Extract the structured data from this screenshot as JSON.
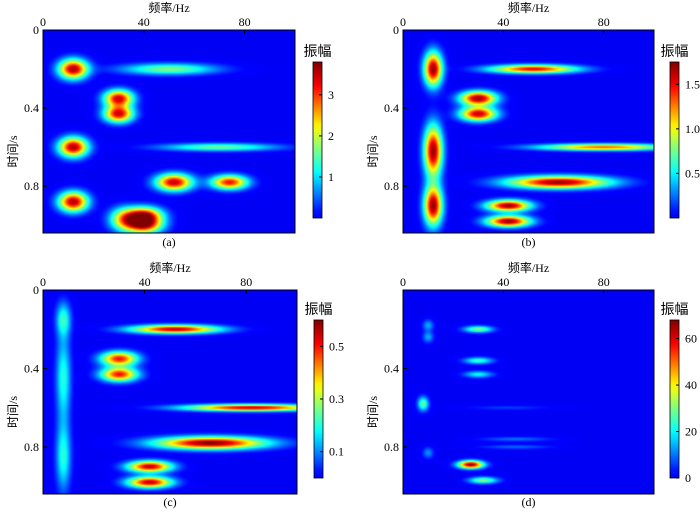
{
  "chart_data": [
    {
      "type": "heatmap",
      "panel_label": "(a)",
      "xlabel": "频率/Hz",
      "ylabel": "时间/s",
      "colorbar_label": "振幅",
      "xlim": [
        0,
        100
      ],
      "ylim": [
        0,
        1.04
      ],
      "y_inverted": true,
      "x_axis_position": "top",
      "xticks": [
        "0",
        "40",
        "80"
      ],
      "yticks": [
        "0",
        "0.4",
        "0.8"
      ],
      "colorbar_ticks": [
        "1",
        "2",
        "3"
      ],
      "colorbar_range": [
        0,
        3.8
      ],
      "colormap": "jet",
      "blobs": [
        {
          "f": 12,
          "t": 0.2,
          "amp": 3.6,
          "sf": 4,
          "st": 0.035
        },
        {
          "f": 12,
          "t": 0.6,
          "amp": 3.6,
          "sf": 4,
          "st": 0.035
        },
        {
          "f": 12,
          "t": 0.88,
          "amp": 3.6,
          "sf": 4,
          "st": 0.035
        },
        {
          "f": 30,
          "t": 0.35,
          "amp": 3.4,
          "sf": 4,
          "st": 0.03
        },
        {
          "f": 30,
          "t": 0.43,
          "amp": 3.4,
          "sf": 4,
          "st": 0.03
        },
        {
          "f": 50,
          "t": 0.2,
          "amp": 1.7,
          "sf": 13,
          "st": 0.02
        },
        {
          "f": 70,
          "t": 0.6,
          "amp": 1.6,
          "sf": 16,
          "st": 0.014
        },
        {
          "f": 52,
          "t": 0.78,
          "amp": 3.5,
          "sf": 5,
          "st": 0.03
        },
        {
          "f": 74,
          "t": 0.78,
          "amp": 3.2,
          "sf": 5,
          "st": 0.025
        },
        {
          "f": 40,
          "t": 0.95,
          "amp": 3.4,
          "sf": 5,
          "st": 0.03
        },
        {
          "f": 40,
          "t": 1.0,
          "amp": 3.2,
          "sf": 5,
          "st": 0.03
        },
        {
          "f": 32,
          "t": 0.97,
          "amp": 2.0,
          "sf": 4,
          "st": 0.04
        }
      ]
    },
    {
      "type": "heatmap",
      "panel_label": "(b)",
      "xlabel": "频率/Hz",
      "ylabel": "时间/s",
      "colorbar_label": "振幅",
      "xlim": [
        0,
        100
      ],
      "ylim": [
        0,
        1.04
      ],
      "y_inverted": true,
      "x_axis_position": "top",
      "xticks": [
        "0",
        "40",
        "80"
      ],
      "yticks": [
        "0",
        "0.4",
        "0.8"
      ],
      "colorbar_ticks": [
        "0.5",
        "1.0",
        "1.5"
      ],
      "colorbar_range": [
        0,
        1.75
      ],
      "colormap": "jet",
      "blobs": [
        {
          "f": 12,
          "t": 0.2,
          "amp": 1.7,
          "sf": 2.5,
          "st": 0.06
        },
        {
          "f": 12,
          "t": 0.62,
          "amp": 1.7,
          "sf": 2.5,
          "st": 0.09
        },
        {
          "f": 12,
          "t": 0.9,
          "amp": 1.7,
          "sf": 2.5,
          "st": 0.07
        },
        {
          "f": 30,
          "t": 0.35,
          "amp": 1.7,
          "sf": 5,
          "st": 0.025
        },
        {
          "f": 30,
          "t": 0.43,
          "amp": 1.6,
          "sf": 5,
          "st": 0.025
        },
        {
          "f": 52,
          "t": 0.2,
          "amp": 1.5,
          "sf": 12,
          "st": 0.015
        },
        {
          "f": 80,
          "t": 0.6,
          "amp": 1.3,
          "sf": 18,
          "st": 0.012
        },
        {
          "f": 62,
          "t": 0.78,
          "amp": 1.7,
          "sf": 14,
          "st": 0.022
        },
        {
          "f": 42,
          "t": 0.9,
          "amp": 1.7,
          "sf": 6,
          "st": 0.02
        },
        {
          "f": 42,
          "t": 0.98,
          "amp": 1.7,
          "sf": 6,
          "st": 0.02
        }
      ]
    },
    {
      "type": "heatmap",
      "panel_label": "(c)",
      "xlabel": "频率/Hz",
      "ylabel": "时间/s",
      "colorbar_label": "振幅",
      "xlim": [
        0,
        100
      ],
      "ylim": [
        0,
        1.04
      ],
      "y_inverted": true,
      "x_axis_position": "top",
      "xticks": [
        "0",
        "40",
        "80"
      ],
      "yticks": [
        "0",
        "0.4",
        "0.8"
      ],
      "colorbar_ticks": [
        "0.1",
        "0.3",
        "0.5"
      ],
      "colorbar_range": [
        0,
        0.6
      ],
      "colormap": "jet",
      "blobs": [
        {
          "f": 8,
          "t": 0.15,
          "amp": 0.2,
          "sf": 2,
          "st": 0.06
        },
        {
          "f": 8,
          "t": 0.45,
          "amp": 0.2,
          "sf": 2,
          "st": 0.15
        },
        {
          "f": 8,
          "t": 0.85,
          "amp": 0.2,
          "sf": 2,
          "st": 0.12
        },
        {
          "f": 30,
          "t": 0.35,
          "amp": 0.5,
          "sf": 5,
          "st": 0.025
        },
        {
          "f": 30,
          "t": 0.43,
          "amp": 0.5,
          "sf": 5,
          "st": 0.025
        },
        {
          "f": 52,
          "t": 0.2,
          "amp": 0.55,
          "sf": 12,
          "st": 0.015
        },
        {
          "f": 82,
          "t": 0.6,
          "amp": 0.55,
          "sf": 18,
          "st": 0.012
        },
        {
          "f": 66,
          "t": 0.78,
          "amp": 0.6,
          "sf": 15,
          "st": 0.022
        },
        {
          "f": 42,
          "t": 0.9,
          "amp": 0.55,
          "sf": 6,
          "st": 0.02
        },
        {
          "f": 42,
          "t": 0.98,
          "amp": 0.55,
          "sf": 6,
          "st": 0.02
        }
      ]
    },
    {
      "type": "heatmap",
      "panel_label": "(d)",
      "xlabel": "频率/Hz",
      "ylabel": "时间/s",
      "colorbar_label": "振幅",
      "xlim": [
        0,
        100
      ],
      "ylim": [
        0,
        1.04
      ],
      "y_inverted": true,
      "x_axis_position": "top",
      "xticks": [
        "0",
        "40",
        "80"
      ],
      "yticks": [
        "0.4",
        "0.8"
      ],
      "colorbar_ticks": [
        "0",
        "20",
        "40",
        "60"
      ],
      "colorbar_range": [
        0,
        68
      ],
      "colormap": "jet",
      "blobs": [
        {
          "f": 10,
          "t": 0.18,
          "amp": 14,
          "sf": 1.5,
          "st": 0.02
        },
        {
          "f": 10,
          "t": 0.24,
          "amp": 14,
          "sf": 1.5,
          "st": 0.02
        },
        {
          "f": 8,
          "t": 0.58,
          "amp": 28,
          "sf": 1.5,
          "st": 0.025
        },
        {
          "f": 10,
          "t": 0.83,
          "amp": 12,
          "sf": 1.5,
          "st": 0.02
        },
        {
          "f": 30,
          "t": 0.2,
          "amp": 30,
          "sf": 4,
          "st": 0.012
        },
        {
          "f": 30,
          "t": 0.36,
          "amp": 24,
          "sf": 4,
          "st": 0.012
        },
        {
          "f": 30,
          "t": 0.43,
          "amp": 20,
          "sf": 4,
          "st": 0.012
        },
        {
          "f": 42,
          "t": 0.6,
          "amp": 6,
          "sf": 12,
          "st": 0.008
        },
        {
          "f": 45,
          "t": 0.76,
          "amp": 10,
          "sf": 10,
          "st": 0.008
        },
        {
          "f": 45,
          "t": 0.8,
          "amp": 9,
          "sf": 10,
          "st": 0.008
        },
        {
          "f": 27,
          "t": 0.89,
          "amp": 66,
          "sf": 3.5,
          "st": 0.014
        },
        {
          "f": 32,
          "t": 0.97,
          "amp": 30,
          "sf": 4,
          "st": 0.012
        }
      ]
    }
  ]
}
